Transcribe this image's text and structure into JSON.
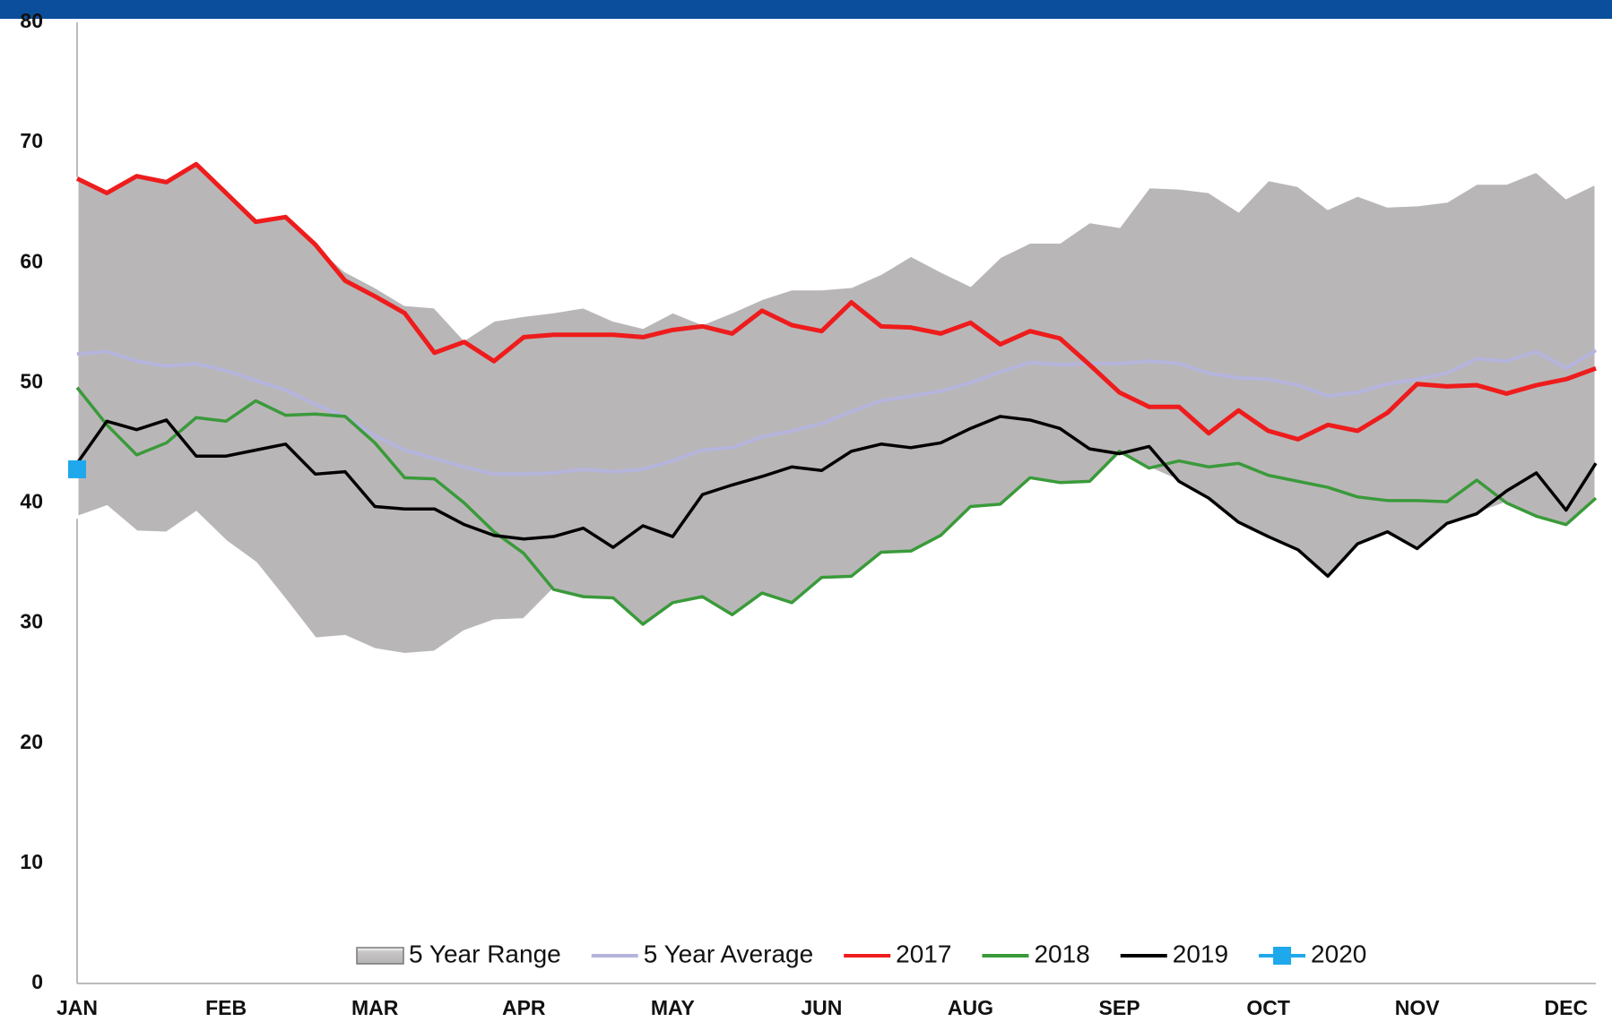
{
  "chart_data": {
    "type": "line",
    "categories": [
      "JAN",
      null,
      null,
      null,
      null,
      "FEB",
      null,
      null,
      null,
      null,
      "MAR",
      null,
      null,
      null,
      null,
      "APR",
      null,
      null,
      null,
      null,
      "MAY",
      null,
      null,
      null,
      null,
      "JUN",
      null,
      null,
      null,
      null,
      "AUG",
      null,
      null,
      null,
      null,
      "SEP",
      null,
      null,
      null,
      null,
      "OCT",
      null,
      null,
      null,
      null,
      "NOV",
      null,
      null,
      null,
      null,
      "DEC",
      null
    ],
    "ylim": [
      0,
      80
    ],
    "yticks": [
      0,
      10,
      20,
      30,
      40,
      50,
      60,
      70,
      80
    ],
    "grid": false,
    "legend": "bottom",
    "range": {
      "name": "5 Year Range",
      "color": "#b9b6b8",
      "high": [
        67,
        66,
        67.2,
        66.7,
        68.2,
        65.8,
        63.4,
        63.8,
        61.5,
        59.3,
        58,
        56.5,
        56.3,
        53.6,
        55.2,
        55.6,
        55.9,
        56.3,
        55.2,
        54.6,
        55.9,
        54.9,
        55.9,
        57,
        57.8,
        57.8,
        58,
        59.1,
        60.6,
        59.3,
        58.1,
        60.5,
        61.7,
        61.7,
        63.4,
        63,
        66.3,
        66.2,
        65.9,
        64.3,
        66.9,
        66.4,
        64.5,
        65.6,
        64.7,
        64.8,
        65.1,
        66.6,
        66.6,
        67.6,
        65.4,
        66.6
      ],
      "low": [
        38.8,
        39.7,
        37.6,
        37.5,
        39.2,
        36.8,
        35,
        31.9,
        28.7,
        28.9,
        27.8,
        27.4,
        27.6,
        29.3,
        30.2,
        30.3,
        32.8,
        32.2,
        32.1,
        29.9,
        31.7,
        32.2,
        30.7,
        32.5,
        31.7,
        33.8,
        33.9,
        35.9,
        36,
        37.3,
        39.7,
        39.9,
        42.1,
        41.7,
        41.8,
        44.1,
        42.9,
        41.8,
        40.4,
        38.4,
        37.2,
        36.1,
        33.9,
        36.6,
        37.6,
        36.2,
        38.3,
        39.1,
        40,
        38.9,
        38.2,
        40.4
      ]
    },
    "series": [
      {
        "name": "5 Year Average",
        "color": "#b4b4dc",
        "values": [
          52.4,
          52.6,
          51.8,
          51.4,
          51.6,
          51,
          50.2,
          49.4,
          48.2,
          47.2,
          45.6,
          44.4,
          43.7,
          43,
          42.4,
          42.4,
          42.5,
          42.8,
          42.6,
          42.8,
          43.5,
          44.4,
          44.6,
          45.5,
          46,
          46.6,
          47.6,
          48.5,
          48.9,
          49.3,
          50,
          50.9,
          51.7,
          51.5,
          51.6,
          51.6,
          51.8,
          51.6,
          50.8,
          50.4,
          50.3,
          49.8,
          48.9,
          49.2,
          49.9,
          50.3,
          50.8,
          52,
          51.8,
          52.6,
          51.2,
          52.7
        ]
      },
      {
        "name": "2017",
        "color": "#ee1c1c",
        "values": [
          67,
          65.8,
          67.2,
          66.7,
          68.2,
          65.8,
          63.4,
          63.8,
          61.5,
          58.5,
          57.2,
          55.8,
          52.5,
          53.4,
          51.8,
          53.8,
          54,
          54,
          54,
          53.8,
          54.4,
          54.7,
          54.1,
          56,
          54.8,
          54.3,
          56.7,
          54.7,
          54.6,
          54.1,
          55,
          53.2,
          54.3,
          53.7,
          51.5,
          49.2,
          48,
          48,
          45.8,
          47.7,
          46,
          45.3,
          46.5,
          46,
          47.5,
          49.9,
          49.7,
          49.8,
          49.1,
          49.8,
          50.3,
          51.2
        ]
      },
      {
        "name": "2018",
        "color": "#3a9a3a",
        "values": [
          49.6,
          46.5,
          44,
          45,
          47.1,
          46.8,
          48.5,
          47.3,
          47.4,
          47.2,
          45,
          42.1,
          42,
          40,
          37.6,
          35.8,
          32.8,
          32.2,
          32.1,
          29.9,
          31.7,
          32.2,
          30.7,
          32.5,
          31.7,
          33.8,
          33.9,
          35.9,
          36,
          37.3,
          39.7,
          39.9,
          42.1,
          41.7,
          41.8,
          44.3,
          42.9,
          43.5,
          43,
          43.3,
          42.3,
          41.8,
          41.3,
          40.5,
          40.2,
          40.2,
          40.1,
          41.9,
          40,
          38.9,
          38.2,
          40.4
        ]
      },
      {
        "name": "2019",
        "color": "#000000",
        "values": [
          43.3,
          46.8,
          46.1,
          46.9,
          43.9,
          43.9,
          44.4,
          44.9,
          42.4,
          42.6,
          39.7,
          39.5,
          39.5,
          38.2,
          37.3,
          37,
          37.2,
          37.9,
          36.3,
          38.1,
          37.2,
          40.7,
          41.5,
          42.2,
          43,
          42.7,
          44.3,
          44.9,
          44.6,
          45,
          46.2,
          47.2,
          46.9,
          46.2,
          44.5,
          44.1,
          44.7,
          41.8,
          40.4,
          38.4,
          37.2,
          36.1,
          33.9,
          36.6,
          37.6,
          36.2,
          38.3,
          39.1,
          41,
          42.5,
          39.4,
          43.3
        ]
      },
      {
        "name": "2020",
        "color": "#1fa8ec",
        "marker": "square",
        "values": [
          42.8,
          null,
          null,
          null,
          null,
          null,
          null,
          null,
          null,
          null,
          null,
          null,
          null,
          null,
          null,
          null,
          null,
          null,
          null,
          null,
          null,
          null,
          null,
          null,
          null,
          null,
          null,
          null,
          null,
          null,
          null,
          null,
          null,
          null,
          null,
          null,
          null,
          null,
          null,
          null,
          null,
          null,
          null,
          null,
          null,
          null,
          null,
          null,
          null,
          null,
          null,
          null
        ]
      }
    ]
  }
}
